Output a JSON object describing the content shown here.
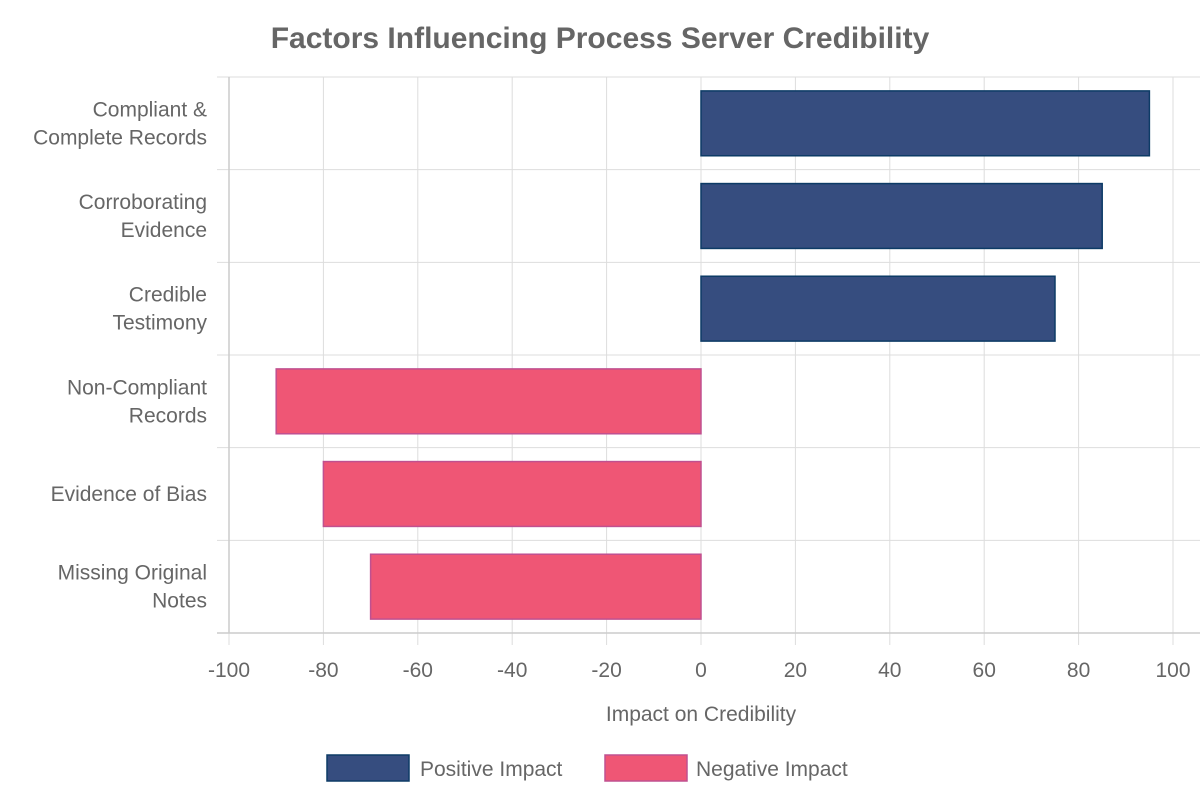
{
  "chart_data": {
    "type": "bar",
    "orientation": "horizontal",
    "title": "Factors Influencing Process Server Credibility",
    "xlabel": "Impact on Credibility",
    "ylabel": "",
    "xlim": [
      -100,
      100
    ],
    "x_ticks": [
      "-100",
      "-80",
      "-60",
      "-40",
      "-20",
      "0",
      "20",
      "40",
      "60",
      "80",
      "100"
    ],
    "grid": true,
    "legend_position": "bottom",
    "categories": [
      [
        "Compliant &",
        "Complete Records"
      ],
      [
        "Corroborating",
        "Evidence"
      ],
      [
        "Credible",
        "Testimony"
      ],
      [
        "Non-Compliant",
        "Records"
      ],
      [
        "Evidence of Bias"
      ],
      [
        "Missing Original",
        "Notes"
      ]
    ],
    "series": [
      {
        "name": "Positive Impact",
        "color": "#364d7f",
        "border": "#0d3b66",
        "values": [
          95,
          85,
          75,
          null,
          null,
          null
        ]
      },
      {
        "name": "Negative Impact",
        "color": "#ef5675",
        "border": "#c05090",
        "values": [
          null,
          null,
          null,
          -90,
          -80,
          -70
        ]
      }
    ]
  }
}
